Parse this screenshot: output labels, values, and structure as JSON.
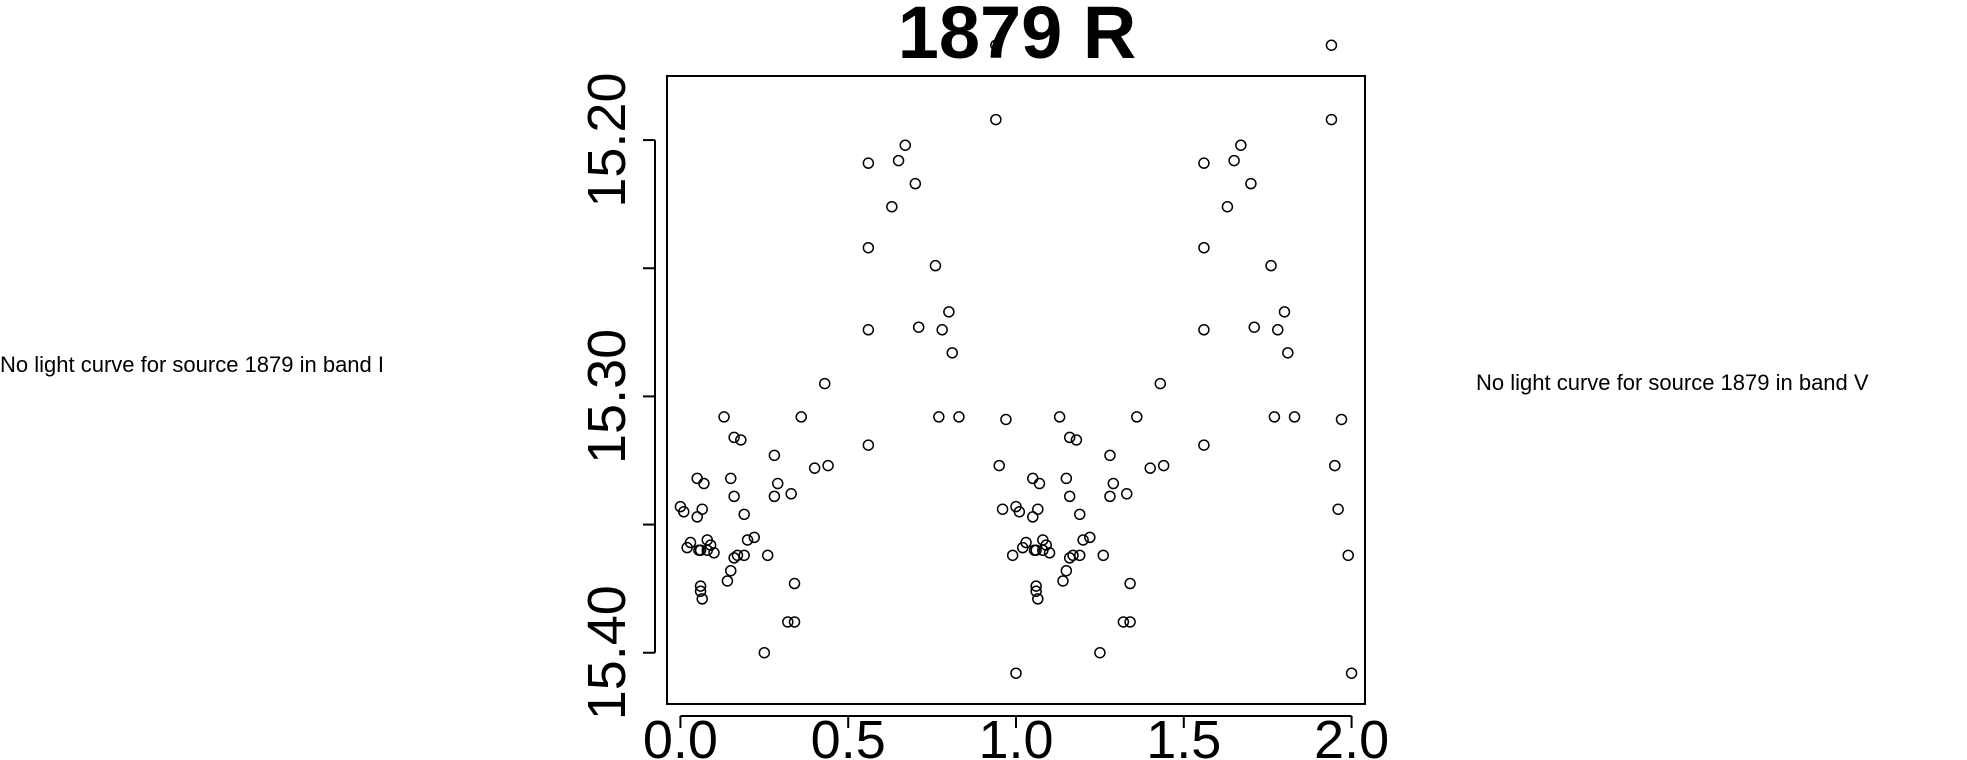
{
  "notes": {
    "left": "No light curve for source 1879 in band I",
    "right": "No light curve for source 1879 in band V"
  },
  "chart_data": {
    "type": "scatter",
    "title": "1879 R",
    "xlabel": "",
    "ylabel": "",
    "xlim": [
      -0.04,
      2.04
    ],
    "ylim": [
      15.42,
      15.175
    ],
    "y_inverted": true,
    "grid": false,
    "x_ticks": [
      "0.0",
      "0.5",
      "1.0",
      "1.5",
      "2.0"
    ],
    "y_ticks": [
      "15.20",
      "15.30",
      "15.40"
    ],
    "marker": "open-circle",
    "x": [
      0.0,
      0.01,
      0.02,
      0.03,
      0.05,
      0.05,
      0.055,
      0.06,
      0.06,
      0.06,
      0.065,
      0.065,
      0.07,
      0.08,
      0.08,
      0.09,
      0.1,
      0.13,
      0.14,
      0.15,
      0.15,
      0.16,
      0.16,
      0.16,
      0.17,
      0.18,
      0.19,
      0.19,
      0.2,
      0.22,
      0.25,
      0.26,
      0.28,
      0.28,
      0.29,
      0.32,
      0.33,
      0.34,
      0.34,
      0.36,
      0.4,
      0.43,
      0.44,
      0.56,
      0.56,
      0.56,
      0.56,
      0.63,
      0.65,
      0.67,
      0.7,
      0.71,
      0.76,
      0.77,
      0.78,
      0.8,
      0.81,
      0.83,
      0.94,
      0.94,
      0.95,
      0.96,
      0.97,
      0.99,
      1.0
    ],
    "y": [
      15.343,
      15.345,
      15.359,
      15.357,
      15.332,
      15.347,
      15.36,
      15.36,
      15.374,
      15.376,
      15.379,
      15.344,
      15.334,
      15.356,
      15.36,
      15.358,
      15.361,
      15.308,
      15.372,
      15.368,
      15.332,
      15.316,
      15.339,
      15.363,
      15.362,
      15.317,
      15.362,
      15.346,
      15.356,
      15.355,
      15.4,
      15.362,
      15.323,
      15.339,
      15.334,
      15.388,
      15.338,
      15.373,
      15.388,
      15.308,
      15.328,
      15.295,
      15.327,
      15.319,
      15.242,
      15.274,
      15.209,
      15.226,
      15.208,
      15.202,
      15.217,
      15.273,
      15.249,
      15.308,
      15.274,
      15.267,
      15.283,
      15.308,
      15.192,
      15.163,
      15.327,
      15.344,
      15.309,
      15.362,
      15.408
    ]
  }
}
